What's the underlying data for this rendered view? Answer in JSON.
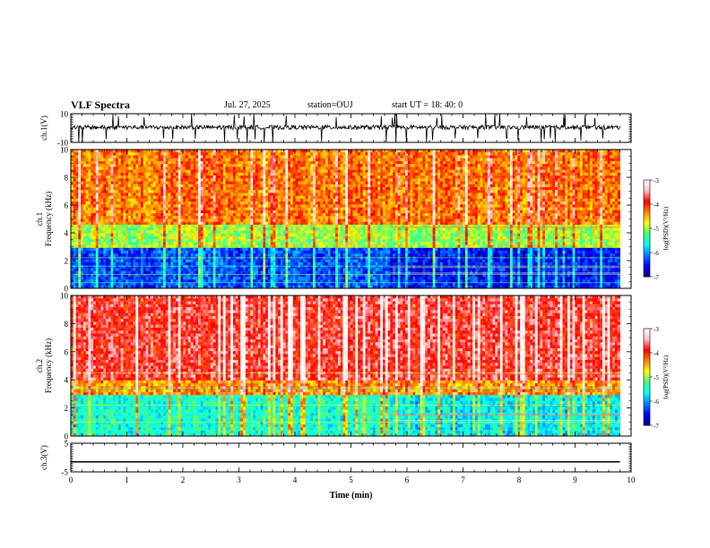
{
  "header": {
    "title": "VLF Spectra",
    "date": "Jul. 27, 2025",
    "station": "station=OUJ",
    "start": "start UT =  18: 40: 0"
  },
  "chart_data": [
    {
      "type": "line",
      "name": "ch1-waveform",
      "ylabel": "ch.1(V)",
      "ylim": [
        -10,
        10
      ],
      "yticks": [
        "10",
        "-10"
      ],
      "x_range_min": [
        0,
        9.8
      ],
      "signal": "noisy waveform centered near 0 V with impulsive spikes"
    },
    {
      "type": "heatmap",
      "name": "ch1-spectrogram",
      "ylabel": "ch.1 Frequency (kHz)",
      "ylim": [
        0,
        10
      ],
      "yticks": [
        "0",
        "2",
        "4",
        "6",
        "8",
        "10"
      ],
      "xlim": [
        0,
        10
      ],
      "data_extent_min": 9.8,
      "colorbar": {
        "label": "log(PSD)(V²/Hz)",
        "range": [
          -7,
          -3
        ],
        "ticks": [
          "-3",
          "-4",
          "-5",
          "-6",
          "-7"
        ]
      },
      "bands_log_psd": [
        {
          "freq_khz": [
            0,
            3
          ],
          "value": -6.3
        },
        {
          "freq_khz": [
            3,
            4.5
          ],
          "value": -5.0
        },
        {
          "freq_khz": [
            4.5,
            10
          ],
          "value": -4.3
        }
      ],
      "regime_change_min": 5.7
    },
    {
      "type": "heatmap",
      "name": "ch2-spectrogram",
      "ylabel": "ch.2 Frequency (kHz)",
      "ylim": [
        0,
        10
      ],
      "yticks": [
        "0",
        "2",
        "4",
        "6",
        "8",
        "10"
      ],
      "xlim": [
        0,
        10
      ],
      "data_extent_min": 9.8,
      "colorbar": {
        "label": "log(PSD)(V²/Hz)",
        "range": [
          -7,
          -3
        ],
        "ticks": [
          "-3",
          "-4",
          "-5",
          "-6",
          "-7"
        ]
      },
      "bands_log_psd": [
        {
          "freq_khz": [
            0,
            3
          ],
          "value": -5.5
        },
        {
          "freq_khz": [
            3,
            4
          ],
          "value": -4.4
        },
        {
          "freq_khz": [
            4,
            10
          ],
          "value": -3.8
        }
      ],
      "regime_change_min": 5.7
    },
    {
      "type": "line",
      "name": "ch3-waveform",
      "ylabel": "ch.3(V)",
      "ylim": [
        -5,
        5
      ],
      "yticks": [
        "5",
        "-5"
      ],
      "x_range_min": [
        0,
        9.8
      ],
      "constant_value": -1.5
    }
  ],
  "xaxis": {
    "label": "Time (min)",
    "ticks": [
      "0",
      "1",
      "2",
      "3",
      "4",
      "5",
      "6",
      "7",
      "8",
      "9",
      "10"
    ],
    "range": [
      0,
      10
    ]
  },
  "colors": {
    "colormap": [
      "#000080",
      "#0000ff",
      "#0080ff",
      "#00ffff",
      "#40ff80",
      "#ffff00",
      "#ff8000",
      "#ff0000",
      "#ffc0c0",
      "#ffffff"
    ]
  }
}
